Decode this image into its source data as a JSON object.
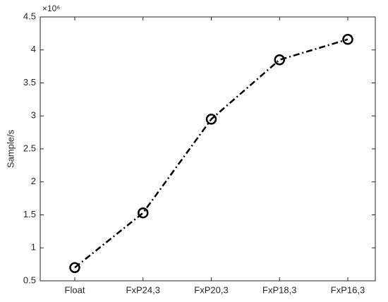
{
  "chart_data": {
    "type": "line",
    "y_label": "Sample/s",
    "y_multiplier": "×10⁶",
    "categories": [
      "Float",
      "FxP24,3",
      "FxP20,3",
      "FxP18,3",
      "FxP16,3"
    ],
    "values": [
      0.7,
      1.53,
      2.95,
      3.85,
      4.16
    ],
    "color": "#000000",
    "ylim": [
      0.5,
      4.5
    ],
    "yticks": [
      0.5,
      1,
      1.5,
      2,
      2.5,
      3,
      3.5,
      4,
      4.5
    ],
    "grid": false
  }
}
